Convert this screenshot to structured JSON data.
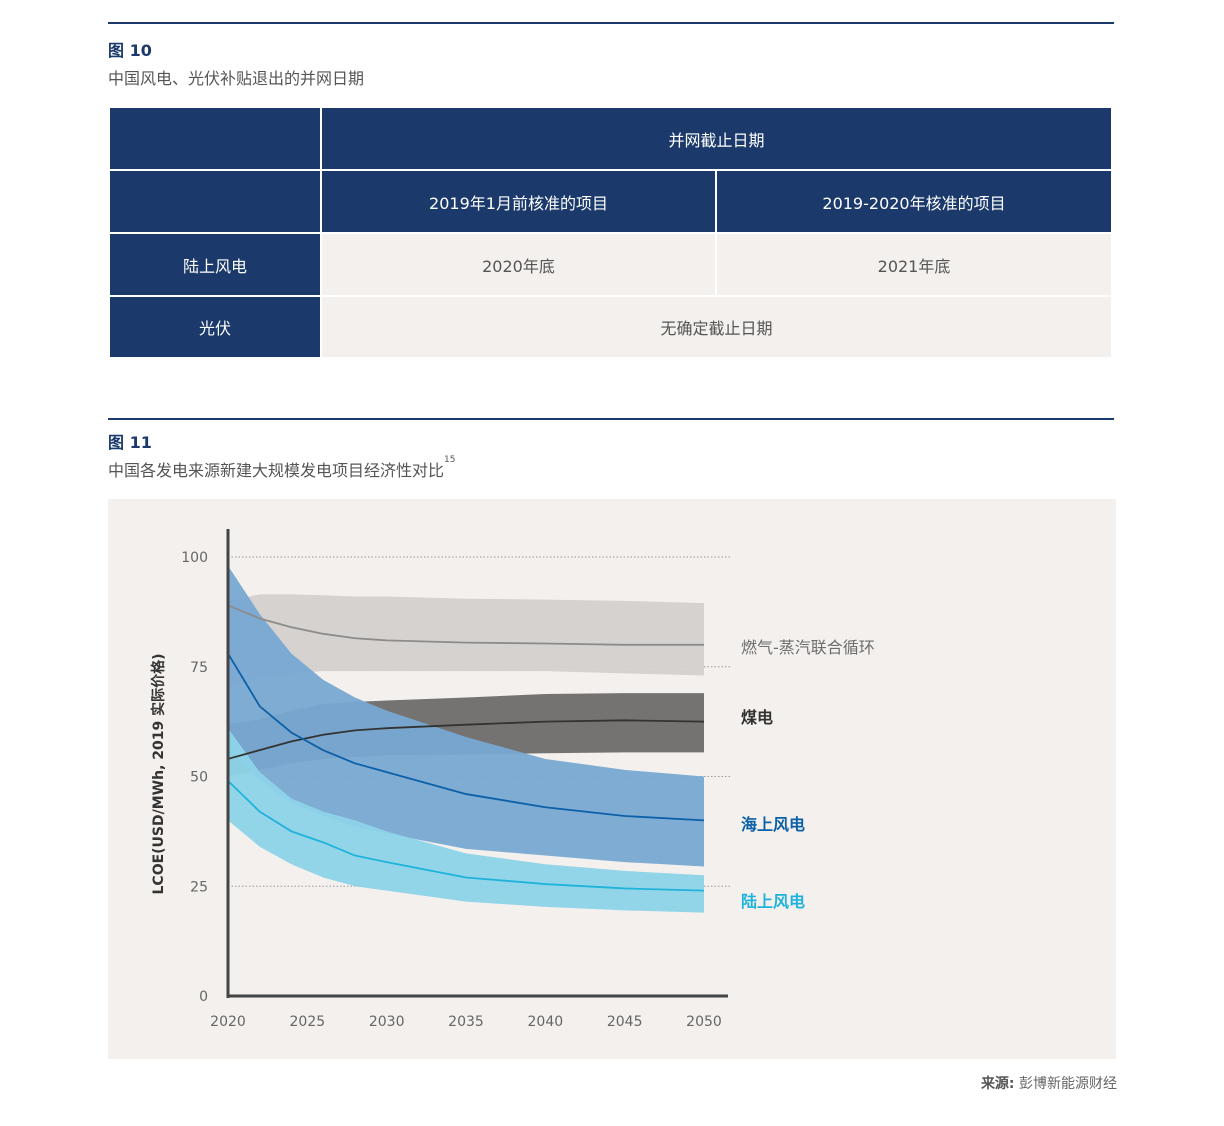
{
  "figure10": {
    "label": "图 10",
    "title": "中国风电、光伏补贴退出的并网日期",
    "table": {
      "header_top": "并网截止日期",
      "col_a": "2019年1月前核准的项目",
      "col_b": "2019-2020年核准的项目",
      "rows": [
        {
          "label": "陆上风电",
          "a": "2020年底",
          "b": "2021年底"
        },
        {
          "label": "光伏",
          "merged": "无确定截止日期"
        }
      ]
    }
  },
  "figure11": {
    "label": "图 11",
    "title": "中国各发电来源新建大规模发电项目经济性对比",
    "footnote": "15"
  },
  "chart_data": {
    "type": "area",
    "title": "中国各发电来源新建大规模发电项目经济性对比",
    "ylabel": "LCOE(USD/MWh, 2019 实际价格)",
    "xlabel": "",
    "ylim": [
      0,
      100
    ],
    "xlim": [
      2020,
      2050
    ],
    "yticks": [
      0,
      25,
      50,
      75,
      100
    ],
    "xticks": [
      2020,
      2025,
      2030,
      2035,
      2040,
      2045,
      2050
    ],
    "gridlines": [
      25,
      50,
      75,
      100
    ],
    "x": [
      2020,
      2022,
      2024,
      2026,
      2028,
      2030,
      2035,
      2040,
      2045,
      2050
    ],
    "series": [
      {
        "name": "燃气-蒸汽联合循环",
        "color_band": "#d4d0ce",
        "color_line": "#8c8c8c",
        "label_color": "#6d6d6d",
        "central": [
          89,
          86,
          84,
          82.5,
          81.5,
          81,
          80.5,
          80.3,
          80,
          80
        ],
        "low": [
          70,
          72.5,
          73.5,
          74,
          74,
          74,
          74,
          74,
          73.5,
          73
        ],
        "high": [
          90,
          91.5,
          91.5,
          91.3,
          91,
          91,
          90.5,
          90.3,
          90,
          89.5
        ]
      },
      {
        "name": "煤电",
        "color_band": "#6e6c6c",
        "color_line": "#333333",
        "label_color": "#333333",
        "central": [
          54,
          56,
          58,
          59.5,
          60.5,
          61,
          61.8,
          62.5,
          62.8,
          62.5
        ],
        "low": [
          50,
          51.5,
          53,
          54,
          54.5,
          54.8,
          55,
          55.3,
          55.5,
          55.5
        ],
        "high": [
          62,
          63,
          65,
          66.5,
          67,
          67.3,
          68,
          68.8,
          69,
          69
        ]
      },
      {
        "name": "海上风电",
        "color_band": "#78a8d2",
        "color_line": "#0c60a8",
        "label_color": "#0c60a8",
        "central": [
          78,
          66,
          60,
          56,
          53,
          51,
          46,
          43,
          41,
          40
        ],
        "low": [
          57,
          49,
          44,
          41,
          38.5,
          37,
          33.5,
          32,
          30.5,
          29.5
        ],
        "high": [
          98,
          87,
          78,
          72,
          68,
          65,
          59,
          54,
          51.5,
          50
        ]
      },
      {
        "name": "陆上风电",
        "color_band": "#8dd3e8",
        "color_line": "#1fb3dc",
        "label_color": "#1fb3dc",
        "central": [
          49,
          42,
          37.5,
          35,
          32,
          30.5,
          27,
          25.5,
          24.5,
          24
        ],
        "low": [
          40,
          34,
          30,
          27,
          25,
          24,
          21.5,
          20.3,
          19.5,
          19
        ],
        "high": [
          61,
          51,
          45,
          42,
          40,
          37.5,
          32.5,
          30,
          28.5,
          27.5
        ]
      }
    ]
  },
  "source": {
    "prefix": "来源:",
    "text": "彭博新能源财经"
  }
}
